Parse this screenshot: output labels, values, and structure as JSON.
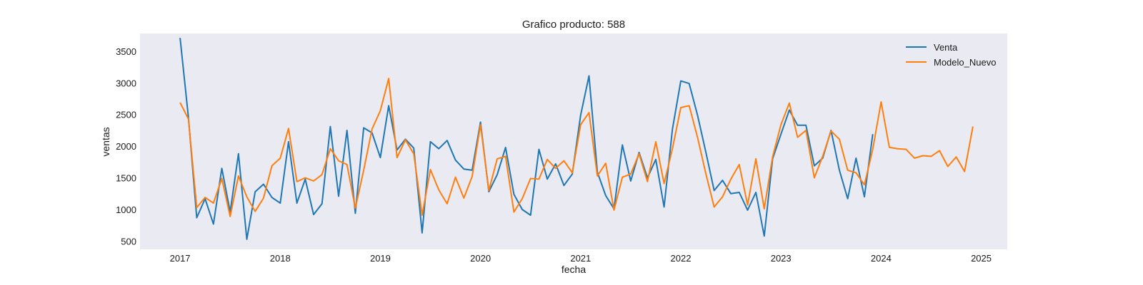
{
  "chart_data": {
    "type": "line",
    "title": "Grafico producto: 588",
    "xlabel": "fecha",
    "ylabel": "ventas",
    "x_ticks": [
      "2017",
      "2018",
      "2019",
      "2020",
      "2021",
      "2022",
      "2023",
      "2024",
      "2025"
    ],
    "y_ticks": [
      500,
      1000,
      1500,
      2000,
      2500,
      3000,
      3500
    ],
    "xlim": [
      2016.6,
      2025.26
    ],
    "ylim": [
      370,
      3780
    ],
    "grid": false,
    "legend": "top-right",
    "background": "#eaeaf2",
    "series": [
      {
        "name": "Venta",
        "color": "#1f77b4",
        "x": [
          "2017-01",
          "2017-02",
          "2017-03",
          "2017-04",
          "2017-05",
          "2017-06",
          "2017-07",
          "2017-08",
          "2017-09",
          "2017-10",
          "2017-11",
          "2017-12",
          "2018-01",
          "2018-02",
          "2018-03",
          "2018-04",
          "2018-05",
          "2018-06",
          "2018-07",
          "2018-08",
          "2018-09",
          "2018-10",
          "2018-11",
          "2018-12",
          "2019-01",
          "2019-02",
          "2019-03",
          "2019-04",
          "2019-05",
          "2019-06",
          "2019-07",
          "2019-08",
          "2019-09",
          "2019-10",
          "2019-11",
          "2019-12",
          "2020-01",
          "2020-02",
          "2020-03",
          "2020-04",
          "2020-05",
          "2020-06",
          "2020-07",
          "2020-08",
          "2020-09",
          "2020-10",
          "2020-11",
          "2020-12",
          "2021-01",
          "2021-02",
          "2021-03",
          "2021-04",
          "2021-05",
          "2021-06",
          "2021-07",
          "2021-08",
          "2021-09",
          "2021-10",
          "2021-11",
          "2021-12",
          "2022-01",
          "2022-02",
          "2022-03",
          "2022-04",
          "2022-05",
          "2022-06",
          "2022-07",
          "2022-08",
          "2022-09",
          "2022-10",
          "2022-11",
          "2022-12",
          "2023-01",
          "2023-02",
          "2023-03",
          "2023-04",
          "2023-05",
          "2023-06",
          "2023-07",
          "2023-08",
          "2023-09",
          "2023-10",
          "2023-11",
          "2023-12"
        ],
        "values": [
          3710,
          2450,
          870,
          1170,
          770,
          1650,
          960,
          1880,
          530,
          1280,
          1400,
          1190,
          1100,
          2070,
          1100,
          1480,
          920,
          1090,
          2310,
          1210,
          2250,
          940,
          2290,
          2210,
          1820,
          2640,
          1940,
          2110,
          1970,
          630,
          2070,
          1960,
          2090,
          1780,
          1640,
          1620,
          2380,
          1280,
          1550,
          1980,
          1240,
          1000,
          910,
          1950,
          1480,
          1720,
          1380,
          1560,
          2490,
          3110,
          1590,
          1220,
          1010,
          2020,
          1450,
          1900,
          1500,
          1790,
          1040,
          2270,
          3030,
          2990,
          2490,
          1910,
          1300,
          1460,
          1250,
          1270,
          990,
          1270,
          580,
          1800,
          2190,
          2570,
          2330,
          2330,
          1690,
          1810,
          2250,
          1620,
          1170,
          1810,
          1200,
          2190
        ]
      },
      {
        "name": "Modelo_Nuevo",
        "color": "#ff7f0e",
        "x": [
          "2017-01",
          "2017-02",
          "2017-03",
          "2017-04",
          "2017-05",
          "2017-06",
          "2017-07",
          "2017-08",
          "2017-09",
          "2017-10",
          "2017-11",
          "2017-12",
          "2018-01",
          "2018-02",
          "2018-03",
          "2018-04",
          "2018-05",
          "2018-06",
          "2018-07",
          "2018-08",
          "2018-09",
          "2018-10",
          "2018-11",
          "2018-12",
          "2019-01",
          "2019-02",
          "2019-03",
          "2019-04",
          "2019-05",
          "2019-06",
          "2019-07",
          "2019-08",
          "2019-09",
          "2019-10",
          "2019-11",
          "2019-12",
          "2020-01",
          "2020-02",
          "2020-03",
          "2020-04",
          "2020-05",
          "2020-06",
          "2020-07",
          "2020-08",
          "2020-09",
          "2020-10",
          "2020-11",
          "2020-12",
          "2021-01",
          "2021-02",
          "2021-03",
          "2021-04",
          "2021-05",
          "2021-06",
          "2021-07",
          "2021-08",
          "2021-09",
          "2021-10",
          "2021-11",
          "2021-12",
          "2022-01",
          "2022-02",
          "2022-03",
          "2022-04",
          "2022-05",
          "2022-06",
          "2022-07",
          "2022-08",
          "2022-09",
          "2022-10",
          "2022-11",
          "2022-12",
          "2023-01",
          "2023-02",
          "2023-03",
          "2023-04",
          "2023-05",
          "2023-06",
          "2023-07",
          "2023-08",
          "2023-09",
          "2023-10",
          "2023-11",
          "2023-12",
          "2024-01",
          "2024-02",
          "2024-03",
          "2024-04",
          "2024-05",
          "2024-06",
          "2024-07",
          "2024-08",
          "2024-09",
          "2024-10",
          "2024-11",
          "2024-12"
        ],
        "values": [
          2690,
          2430,
          1030,
          1190,
          1100,
          1490,
          890,
          1530,
          1200,
          970,
          1180,
          1690,
          1810,
          2280,
          1440,
          1500,
          1450,
          1550,
          1960,
          1770,
          1710,
          1020,
          1620,
          2270,
          2560,
          3070,
          1820,
          2100,
          1880,
          910,
          1630,
          1310,
          1090,
          1510,
          1180,
          1520,
          2340,
          1300,
          1800,
          1840,
          960,
          1170,
          1490,
          1480,
          1790,
          1650,
          1770,
          1580,
          2340,
          2530,
          1530,
          1730,
          990,
          1510,
          1560,
          1880,
          1440,
          2070,
          1410,
          1960,
          2610,
          2640,
          2140,
          1570,
          1040,
          1200,
          1480,
          1710,
          1070,
          1800,
          1010,
          1830,
          2340,
          2680,
          2140,
          2250,
          1500,
          1840,
          2240,
          2110,
          1620,
          1580,
          1390,
          1950,
          2700,
          1980,
          1960,
          1950,
          1810,
          1850,
          1840,
          1930,
          1680,
          1830,
          1600,
          2310
        ]
      }
    ]
  }
}
